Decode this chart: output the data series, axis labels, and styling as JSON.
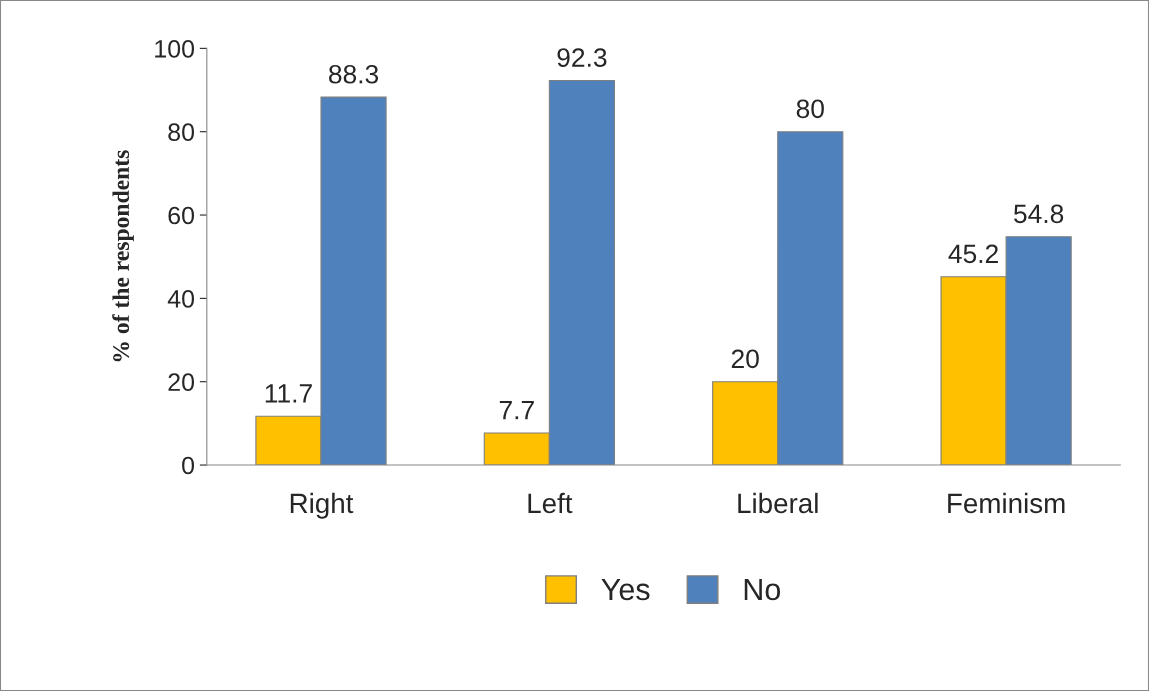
{
  "chart_data": {
    "type": "bar",
    "ylabel": "% of the respondents",
    "categories": [
      "Right",
      "Left",
      "Liberal",
      "Feminism"
    ],
    "series": [
      {
        "name": "Yes",
        "color": "#ffc000",
        "values": [
          11.7,
          7.7,
          20,
          45.2
        ]
      },
      {
        "name": "No",
        "color": "#4f81bd",
        "values": [
          88.3,
          92.3,
          80,
          54.8
        ]
      }
    ],
    "ylim": [
      0,
      100
    ],
    "yticks": [
      0,
      20,
      40,
      60,
      80,
      100
    ],
    "data_labels": true,
    "legend": "bottom",
    "grid": false
  }
}
